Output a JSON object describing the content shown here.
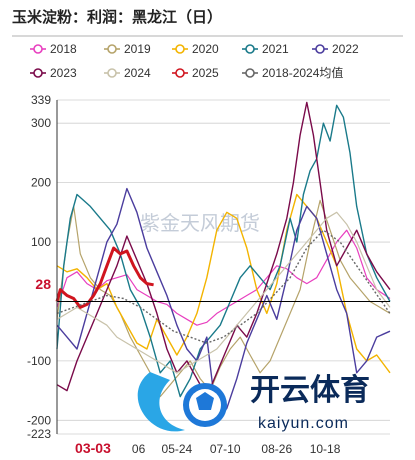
{
  "chart_data": {
    "type": "line",
    "title": "玉米淀粉：利润：黑龙江（日）",
    "xlabel": "",
    "ylabel": "",
    "ylim": [
      -223,
      339
    ],
    "y_ticks": [
      {
        "value": 339,
        "label": "339"
      },
      {
        "value": 300,
        "label": "300"
      },
      {
        "value": 200,
        "label": "200"
      },
      {
        "value": 100,
        "label": "100"
      },
      {
        "value": 28,
        "label": "28",
        "highlight": true
      },
      {
        "value": -100,
        "label": "-100"
      },
      {
        "value": -200,
        "label": "-200"
      },
      {
        "value": -223,
        "label": "-223"
      }
    ],
    "x_ticks": [
      {
        "pos": 0.108,
        "label": "03-03",
        "highlight": true
      },
      {
        "pos": 0.245,
        "label": "06"
      },
      {
        "pos": 0.36,
        "label": "05-24"
      },
      {
        "pos": 0.505,
        "label": "07-10"
      },
      {
        "pos": 0.66,
        "label": "08-26"
      },
      {
        "pos": 0.805,
        "label": "10-18"
      }
    ],
    "grid": true,
    "legend_position": "top",
    "watermark": "紫金天风期货",
    "series": [
      {
        "name": "2018",
        "color": "#e83fbf",
        "dash": "",
        "width": 1.2,
        "values": [
          [
            0,
            -10
          ],
          [
            0.03,
            40
          ],
          [
            0.06,
            50
          ],
          [
            0.09,
            30
          ],
          [
            0.12,
            20
          ],
          [
            0.15,
            35
          ],
          [
            0.18,
            40
          ],
          [
            0.21,
            45
          ],
          [
            0.24,
            20
          ],
          [
            0.27,
            10
          ],
          [
            0.3,
            0
          ],
          [
            0.33,
            -5
          ],
          [
            0.36,
            -20
          ],
          [
            0.39,
            -30
          ],
          [
            0.42,
            -40
          ],
          [
            0.45,
            -35
          ],
          [
            0.48,
            -20
          ],
          [
            0.51,
            -10
          ],
          [
            0.54,
            0
          ],
          [
            0.57,
            10
          ],
          [
            0.6,
            20
          ],
          [
            0.63,
            40
          ],
          [
            0.66,
            60
          ],
          [
            0.69,
            55
          ],
          [
            0.72,
            40
          ],
          [
            0.75,
            30
          ],
          [
            0.78,
            40
          ],
          [
            0.81,
            70
          ],
          [
            0.84,
            100
          ],
          [
            0.87,
            120
          ],
          [
            0.9,
            90
          ],
          [
            0.93,
            40
          ],
          [
            0.96,
            20
          ],
          [
            1,
            5
          ]
        ]
      },
      {
        "name": "2019",
        "color": "#b5a36a",
        "dash": "",
        "width": 1.2,
        "values": [
          [
            0,
            -30
          ],
          [
            0.03,
            100
          ],
          [
            0.05,
            160
          ],
          [
            0.07,
            80
          ],
          [
            0.1,
            40
          ],
          [
            0.13,
            20
          ],
          [
            0.16,
            10
          ],
          [
            0.19,
            -20
          ],
          [
            0.22,
            -60
          ],
          [
            0.25,
            -90
          ],
          [
            0.28,
            -120
          ],
          [
            0.31,
            -160
          ],
          [
            0.34,
            -140
          ],
          [
            0.37,
            -120
          ],
          [
            0.4,
            -100
          ],
          [
            0.43,
            -130
          ],
          [
            0.46,
            -150
          ],
          [
            0.49,
            -110
          ],
          [
            0.52,
            -80
          ],
          [
            0.55,
            -60
          ],
          [
            0.58,
            -90
          ],
          [
            0.61,
            -120
          ],
          [
            0.64,
            -100
          ],
          [
            0.67,
            -60
          ],
          [
            0.7,
            -20
          ],
          [
            0.73,
            20
          ],
          [
            0.76,
            100
          ],
          [
            0.79,
            170
          ],
          [
            0.82,
            120
          ],
          [
            0.85,
            70
          ],
          [
            0.88,
            40
          ],
          [
            0.91,
            20
          ],
          [
            0.94,
            0
          ],
          [
            0.97,
            -10
          ],
          [
            1,
            -20
          ]
        ]
      },
      {
        "name": "2020",
        "color": "#f3b400",
        "dash": "",
        "width": 1.4,
        "values": [
          [
            0,
            60
          ],
          [
            0.03,
            50
          ],
          [
            0.06,
            55
          ],
          [
            0.09,
            40
          ],
          [
            0.12,
            20
          ],
          [
            0.15,
            30
          ],
          [
            0.18,
            -10
          ],
          [
            0.21,
            -40
          ],
          [
            0.24,
            -70
          ],
          [
            0.27,
            -80
          ],
          [
            0.3,
            -30
          ],
          [
            0.33,
            -60
          ],
          [
            0.36,
            -90
          ],
          [
            0.39,
            -60
          ],
          [
            0.42,
            -20
          ],
          [
            0.45,
            40
          ],
          [
            0.48,
            120
          ],
          [
            0.51,
            150
          ],
          [
            0.54,
            140
          ],
          [
            0.57,
            90
          ],
          [
            0.6,
            20
          ],
          [
            0.63,
            -20
          ],
          [
            0.66,
            30
          ],
          [
            0.69,
            120
          ],
          [
            0.72,
            180
          ],
          [
            0.75,
            160
          ],
          [
            0.78,
            140
          ],
          [
            0.81,
            100
          ],
          [
            0.84,
            60
          ],
          [
            0.87,
            -20
          ],
          [
            0.9,
            -80
          ],
          [
            0.93,
            -100
          ],
          [
            0.96,
            -90
          ],
          [
            1,
            -120
          ]
        ]
      },
      {
        "name": "2021",
        "color": "#1a7a8a",
        "dash": "",
        "width": 1.4,
        "values": [
          [
            0,
            -80
          ],
          [
            0.02,
            60
          ],
          [
            0.04,
            140
          ],
          [
            0.06,
            180
          ],
          [
            0.08,
            170
          ],
          [
            0.1,
            160
          ],
          [
            0.13,
            140
          ],
          [
            0.16,
            120
          ],
          [
            0.19,
            80
          ],
          [
            0.22,
            20
          ],
          [
            0.25,
            -10
          ],
          [
            0.28,
            -60
          ],
          [
            0.31,
            -120
          ],
          [
            0.34,
            -100
          ],
          [
            0.37,
            -160
          ],
          [
            0.4,
            -130
          ],
          [
            0.43,
            -80
          ],
          [
            0.46,
            -60
          ],
          [
            0.49,
            -40
          ],
          [
            0.52,
            0
          ],
          [
            0.55,
            40
          ],
          [
            0.58,
            60
          ],
          [
            0.61,
            40
          ],
          [
            0.64,
            20
          ],
          [
            0.67,
            60
          ],
          [
            0.7,
            140
          ],
          [
            0.72,
            100
          ],
          [
            0.74,
            180
          ],
          [
            0.76,
            220
          ],
          [
            0.78,
            240
          ],
          [
            0.8,
            300
          ],
          [
            0.82,
            270
          ],
          [
            0.84,
            330
          ],
          [
            0.86,
            310
          ],
          [
            0.88,
            250
          ],
          [
            0.9,
            160
          ],
          [
            0.93,
            80
          ],
          [
            0.96,
            40
          ],
          [
            1,
            0
          ]
        ]
      },
      {
        "name": "2022",
        "color": "#4b3d9e",
        "dash": "",
        "width": 1.4,
        "values": [
          [
            0,
            -40
          ],
          [
            0.03,
            -60
          ],
          [
            0.06,
            -80
          ],
          [
            0.09,
            -20
          ],
          [
            0.12,
            40
          ],
          [
            0.15,
            100
          ],
          [
            0.18,
            130
          ],
          [
            0.21,
            190
          ],
          [
            0.24,
            150
          ],
          [
            0.27,
            90
          ],
          [
            0.3,
            50
          ],
          [
            0.33,
            10
          ],
          [
            0.36,
            -40
          ],
          [
            0.39,
            -80
          ],
          [
            0.42,
            -100
          ],
          [
            0.45,
            -60
          ],
          [
            0.48,
            -200
          ],
          [
            0.51,
            -180
          ],
          [
            0.54,
            -130
          ],
          [
            0.57,
            -70
          ],
          [
            0.6,
            -30
          ],
          [
            0.63,
            10
          ],
          [
            0.66,
            -30
          ],
          [
            0.69,
            40
          ],
          [
            0.72,
            120
          ],
          [
            0.75,
            160
          ],
          [
            0.78,
            140
          ],
          [
            0.81,
            80
          ],
          [
            0.84,
            20
          ],
          [
            0.87,
            -20
          ],
          [
            0.9,
            -120
          ],
          [
            0.93,
            -100
          ],
          [
            0.96,
            -60
          ],
          [
            1,
            -50
          ]
        ]
      },
      {
        "name": "2023",
        "color": "#7a0a4a",
        "dash": "",
        "width": 1.4,
        "values": [
          [
            0,
            -140
          ],
          [
            0.03,
            -150
          ],
          [
            0.06,
            -100
          ],
          [
            0.09,
            -60
          ],
          [
            0.12,
            -20
          ],
          [
            0.15,
            20
          ],
          [
            0.18,
            60
          ],
          [
            0.21,
            110
          ],
          [
            0.24,
            70
          ],
          [
            0.27,
            30
          ],
          [
            0.3,
            -20
          ],
          [
            0.33,
            -80
          ],
          [
            0.36,
            -120
          ],
          [
            0.39,
            -100
          ],
          [
            0.42,
            -130
          ],
          [
            0.45,
            -160
          ],
          [
            0.48,
            -120
          ],
          [
            0.51,
            -80
          ],
          [
            0.54,
            -40
          ],
          [
            0.57,
            -60
          ],
          [
            0.6,
            -20
          ],
          [
            0.63,
            30
          ],
          [
            0.66,
            80
          ],
          [
            0.69,
            140
          ],
          [
            0.71,
            200
          ],
          [
            0.73,
            280
          ],
          [
            0.75,
            335
          ],
          [
            0.77,
            280
          ],
          [
            0.79,
            200
          ],
          [
            0.81,
            120
          ],
          [
            0.84,
            60
          ],
          [
            0.87,
            90
          ],
          [
            0.9,
            120
          ],
          [
            0.93,
            80
          ],
          [
            0.96,
            50
          ],
          [
            1,
            20
          ]
        ]
      },
      {
        "name": "2024",
        "color": "#c8c2aa",
        "dash": "",
        "width": 1.2,
        "values": [
          [
            0,
            -30
          ],
          [
            0.03,
            -20
          ],
          [
            0.06,
            -10
          ],
          [
            0.09,
            -20
          ],
          [
            0.12,
            -30
          ],
          [
            0.15,
            -40
          ],
          [
            0.18,
            -60
          ],
          [
            0.21,
            -70
          ],
          [
            0.24,
            -80
          ],
          [
            0.27,
            -90
          ],
          [
            0.3,
            -100
          ],
          [
            0.33,
            -110
          ],
          [
            0.36,
            -120
          ],
          [
            0.39,
            -110
          ],
          [
            0.42,
            -100
          ],
          [
            0.45,
            -90
          ],
          [
            0.48,
            -80
          ],
          [
            0.51,
            -60
          ],
          [
            0.54,
            -40
          ],
          [
            0.57,
            -20
          ],
          [
            0.6,
            0
          ],
          [
            0.63,
            20
          ],
          [
            0.66,
            40
          ],
          [
            0.69,
            60
          ],
          [
            0.72,
            80
          ],
          [
            0.75,
            100
          ],
          [
            0.78,
            120
          ],
          [
            0.81,
            140
          ],
          [
            0.84,
            150
          ],
          [
            0.87,
            130
          ],
          [
            0.9,
            100
          ],
          [
            0.93,
            60
          ],
          [
            0.96,
            20
          ],
          [
            1,
            -10
          ]
        ]
      },
      {
        "name": "2025",
        "color": "#d0151f",
        "dash": "",
        "width": 3,
        "values": [
          [
            0,
            0
          ],
          [
            0.01,
            20
          ],
          [
            0.03,
            10
          ],
          [
            0.05,
            5
          ],
          [
            0.07,
            -10
          ],
          [
            0.09,
            -5
          ],
          [
            0.11,
            10
          ],
          [
            0.13,
            30
          ],
          [
            0.15,
            60
          ],
          [
            0.17,
            90
          ],
          [
            0.19,
            80
          ],
          [
            0.21,
            85
          ],
          [
            0.23,
            60
          ],
          [
            0.25,
            40
          ],
          [
            0.27,
            30
          ],
          [
            0.29,
            28
          ]
        ]
      },
      {
        "name": "2018-2024均值",
        "color": "#666666",
        "dash": "2 2",
        "width": 1.4,
        "values": [
          [
            0,
            -20
          ],
          [
            0.05,
            -10
          ],
          [
            0.1,
            0
          ],
          [
            0.15,
            10
          ],
          [
            0.2,
            5
          ],
          [
            0.25,
            -10
          ],
          [
            0.3,
            -30
          ],
          [
            0.35,
            -50
          ],
          [
            0.4,
            -60
          ],
          [
            0.45,
            -70
          ],
          [
            0.5,
            -60
          ],
          [
            0.55,
            -40
          ],
          [
            0.6,
            -20
          ],
          [
            0.65,
            10
          ],
          [
            0.7,
            40
          ],
          [
            0.75,
            90
          ],
          [
            0.8,
            120
          ],
          [
            0.85,
            100
          ],
          [
            0.9,
            60
          ],
          [
            0.95,
            20
          ],
          [
            1,
            -20
          ]
        ]
      }
    ]
  },
  "watermark_brand": {
    "title": "开云体育",
    "domain": "kaiyun.com"
  }
}
